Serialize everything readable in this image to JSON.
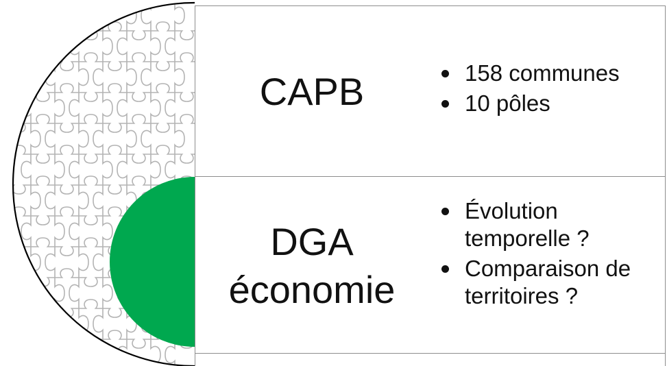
{
  "colors": {
    "accent_green": "#00a84f",
    "outline": "#000000",
    "puzzle_stroke": "#b3b3b3",
    "panel_border": "#8c8c8c"
  },
  "icons": {
    "left_shape": "puzzle-half-circle-icon",
    "inner_shape": "green-half-circle-icon"
  },
  "panels": [
    {
      "title_lines": [
        "CAPB"
      ],
      "bullets": [
        "158 communes",
        "10 pôles"
      ]
    },
    {
      "title_lines": [
        "DGA",
        "économie"
      ],
      "bullets": [
        "Évolution temporelle ?",
        "Comparaison de territoires ?"
      ]
    }
  ]
}
